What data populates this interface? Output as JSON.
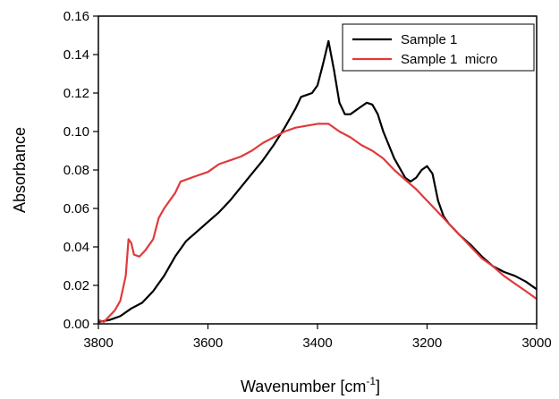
{
  "chart_data": {
    "type": "line",
    "xlabel": "Wavenumber [cm",
    "xlabel_superscript": "-1",
    "xlabel_suffix": "]",
    "ylabel": "Absorbance",
    "xlim": [
      3800,
      3000
    ],
    "ylim": [
      0,
      0.16
    ],
    "x_ticks": [
      "3800",
      "3600",
      "3400",
      "3200",
      "3000"
    ],
    "y_ticks": [
      "0.00",
      "0.02",
      "0.04",
      "0.06",
      "0.08",
      "0.10",
      "0.12",
      "0.14",
      "0.16"
    ],
    "legend_position": "top-right",
    "grid": false,
    "series": [
      {
        "name": "Sample 1",
        "color": "#000000",
        "points": [
          [
            3800,
            0.001
          ],
          [
            3780,
            0.002
          ],
          [
            3760,
            0.004
          ],
          [
            3740,
            0.008
          ],
          [
            3720,
            0.011
          ],
          [
            3700,
            0.017
          ],
          [
            3680,
            0.025
          ],
          [
            3660,
            0.035
          ],
          [
            3640,
            0.043
          ],
          [
            3620,
            0.048
          ],
          [
            3600,
            0.053
          ],
          [
            3580,
            0.058
          ],
          [
            3560,
            0.064
          ],
          [
            3540,
            0.071
          ],
          [
            3520,
            0.078
          ],
          [
            3500,
            0.085
          ],
          [
            3480,
            0.093
          ],
          [
            3460,
            0.102
          ],
          [
            3440,
            0.112
          ],
          [
            3430,
            0.118
          ],
          [
            3420,
            0.119
          ],
          [
            3410,
            0.12
          ],
          [
            3400,
            0.124
          ],
          [
            3390,
            0.135
          ],
          [
            3380,
            0.147
          ],
          [
            3370,
            0.132
          ],
          [
            3360,
            0.115
          ],
          [
            3350,
            0.109
          ],
          [
            3340,
            0.109
          ],
          [
            3320,
            0.113
          ],
          [
            3310,
            0.115
          ],
          [
            3300,
            0.114
          ],
          [
            3290,
            0.109
          ],
          [
            3280,
            0.1
          ],
          [
            3260,
            0.086
          ],
          [
            3240,
            0.076
          ],
          [
            3230,
            0.074
          ],
          [
            3220,
            0.076
          ],
          [
            3210,
            0.08
          ],
          [
            3200,
            0.082
          ],
          [
            3190,
            0.078
          ],
          [
            3180,
            0.064
          ],
          [
            3170,
            0.056
          ],
          [
            3160,
            0.052
          ],
          [
            3140,
            0.046
          ],
          [
            3120,
            0.041
          ],
          [
            3100,
            0.035
          ],
          [
            3080,
            0.03
          ],
          [
            3060,
            0.027
          ],
          [
            3040,
            0.025
          ],
          [
            3020,
            0.022
          ],
          [
            3000,
            0.018
          ]
        ]
      },
      {
        "name": "Sample 1  micro",
        "color": "#e03a3a",
        "points": [
          [
            3800,
            0.002
          ],
          [
            3790,
            0.001
          ],
          [
            3780,
            0.004
          ],
          [
            3770,
            0.007
          ],
          [
            3760,
            0.012
          ],
          [
            3750,
            0.025
          ],
          [
            3745,
            0.044
          ],
          [
            3740,
            0.042
          ],
          [
            3735,
            0.036
          ],
          [
            3725,
            0.035
          ],
          [
            3715,
            0.038
          ],
          [
            3700,
            0.044
          ],
          [
            3690,
            0.055
          ],
          [
            3680,
            0.06
          ],
          [
            3670,
            0.064
          ],
          [
            3660,
            0.068
          ],
          [
            3650,
            0.074
          ],
          [
            3640,
            0.075
          ],
          [
            3620,
            0.077
          ],
          [
            3600,
            0.079
          ],
          [
            3580,
            0.083
          ],
          [
            3560,
            0.085
          ],
          [
            3540,
            0.087
          ],
          [
            3520,
            0.09
          ],
          [
            3500,
            0.094
          ],
          [
            3480,
            0.097
          ],
          [
            3460,
            0.1
          ],
          [
            3440,
            0.102
          ],
          [
            3420,
            0.103
          ],
          [
            3400,
            0.104
          ],
          [
            3380,
            0.104
          ],
          [
            3360,
            0.1
          ],
          [
            3340,
            0.097
          ],
          [
            3320,
            0.093
          ],
          [
            3300,
            0.09
          ],
          [
            3280,
            0.086
          ],
          [
            3260,
            0.08
          ],
          [
            3240,
            0.075
          ],
          [
            3220,
            0.07
          ],
          [
            3200,
            0.064
          ],
          [
            3180,
            0.058
          ],
          [
            3160,
            0.052
          ],
          [
            3140,
            0.046
          ],
          [
            3120,
            0.04
          ],
          [
            3100,
            0.034
          ],
          [
            3080,
            0.03
          ],
          [
            3060,
            0.025
          ],
          [
            3040,
            0.021
          ],
          [
            3020,
            0.017
          ],
          [
            3000,
            0.013
          ]
        ]
      }
    ]
  }
}
